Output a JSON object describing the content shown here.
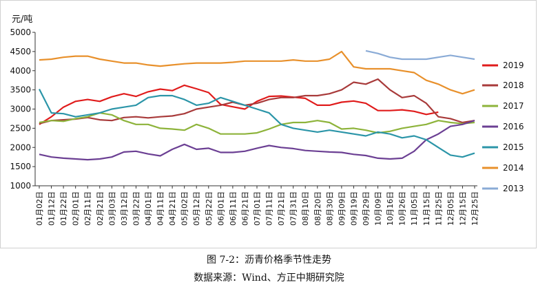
{
  "chart_data": {
    "type": "line",
    "ylabel": "元/吨",
    "ylim": [
      1000,
      5000
    ],
    "yticks": [
      1000,
      1500,
      2000,
      2500,
      3000,
      3500,
      4000,
      4500,
      5000
    ],
    "grid": false,
    "legend_position": "right",
    "x_tick_labels": [
      "01月02日",
      "01月12日",
      "01月22日",
      "02月01日",
      "02月11日",
      "02月21日",
      "03月03日",
      "03月12日",
      "03月22日",
      "04月01日",
      "04月11日",
      "04月21日",
      "05月02日",
      "05月12日",
      "05月22日",
      "06月01日",
      "06月11日",
      "06月21日",
      "07月01日",
      "07月11日",
      "07月21日",
      "07月31日",
      "08月10日",
      "08月20日",
      "08月30日",
      "09月09日",
      "09月19日",
      "09月29日",
      "10月09日",
      "10月16日",
      "10月26日",
      "11月05日",
      "11月15日",
      "11月25日",
      "12月05日",
      "12月15日",
      "12月25日"
    ],
    "x_index_range": [
      0,
      36
    ],
    "series": [
      {
        "name": "2019",
        "color": "#e01b1b",
        "x": [
          0,
          1,
          2,
          3,
          4,
          5,
          6,
          7,
          8,
          9,
          10,
          11,
          12,
          13,
          14,
          15,
          16,
          17,
          18,
          19,
          20,
          21,
          22,
          23,
          24,
          25,
          26,
          27,
          28,
          29,
          30,
          31,
          32,
          33
        ],
        "values": [
          2600,
          2800,
          3050,
          3200,
          3250,
          3200,
          3320,
          3400,
          3330,
          3450,
          3520,
          3480,
          3620,
          3530,
          3430,
          3120,
          3060,
          3000,
          3200,
          3330,
          3340,
          3310,
          3280,
          3100,
          3100,
          3180,
          3210,
          3150,
          2960,
          2960,
          2980,
          2940,
          2860,
          2920
        ]
      },
      {
        "name": "2018",
        "color": "#a83a3a",
        "x": [
          0,
          1,
          2,
          3,
          4,
          5,
          6,
          7,
          8,
          9,
          10,
          11,
          12,
          13,
          14,
          15,
          16,
          17,
          18,
          19,
          20,
          21,
          22,
          23,
          24,
          25,
          26,
          27,
          28,
          29,
          30,
          31,
          32,
          33,
          34,
          35,
          36
        ],
        "values": [
          2620,
          2700,
          2720,
          2740,
          2780,
          2720,
          2700,
          2780,
          2800,
          2770,
          2800,
          2820,
          2880,
          3000,
          3050,
          3100,
          3180,
          3100,
          3150,
          3250,
          3300,
          3300,
          3350,
          3350,
          3400,
          3500,
          3700,
          3650,
          3780,
          3500,
          3300,
          3350,
          3150,
          2800,
          2750,
          2650,
          2700
        ]
      },
      {
        "name": "2017",
        "color": "#8db33a",
        "x": [
          0,
          1,
          2,
          3,
          4,
          5,
          6,
          7,
          8,
          9,
          10,
          11,
          12,
          13,
          14,
          15,
          16,
          17,
          18,
          19,
          20,
          21,
          22,
          23,
          24,
          25,
          26,
          27,
          28,
          29,
          30,
          31,
          32,
          33,
          34,
          35,
          36
        ],
        "values": [
          2650,
          2700,
          2680,
          2750,
          2800,
          2900,
          2850,
          2700,
          2600,
          2600,
          2500,
          2480,
          2450,
          2600,
          2500,
          2350,
          2350,
          2350,
          2380,
          2480,
          2600,
          2650,
          2650,
          2700,
          2650,
          2480,
          2500,
          2450,
          2380,
          2420,
          2500,
          2550,
          2600,
          2700,
          2650,
          2620,
          2650
        ]
      },
      {
        "name": "2016",
        "color": "#6b3f93",
        "x": [
          0,
          1,
          2,
          3,
          4,
          5,
          6,
          7,
          8,
          9,
          10,
          11,
          12,
          13,
          14,
          15,
          16,
          17,
          18,
          19,
          20,
          21,
          22,
          23,
          24,
          25,
          26,
          27,
          28,
          29,
          30,
          31,
          32,
          33,
          34,
          35,
          36
        ],
        "values": [
          1820,
          1750,
          1720,
          1700,
          1680,
          1700,
          1750,
          1880,
          1900,
          1830,
          1780,
          1950,
          2080,
          1950,
          1980,
          1870,
          1870,
          1900,
          1980,
          2050,
          2000,
          1970,
          1920,
          1900,
          1880,
          1870,
          1820,
          1790,
          1720,
          1700,
          1720,
          1900,
          2200,
          2350,
          2550,
          2600,
          2700
        ]
      },
      {
        "name": "2015",
        "color": "#2b95a8",
        "x": [
          0,
          1,
          2,
          3,
          4,
          5,
          6,
          7,
          8,
          9,
          10,
          11,
          12,
          13,
          14,
          15,
          16,
          17,
          18,
          19,
          20,
          21,
          22,
          23,
          24,
          25,
          26,
          27,
          28,
          29,
          30,
          31,
          32,
          33,
          34,
          35,
          36
        ],
        "values": [
          3520,
          2900,
          2880,
          2800,
          2850,
          2900,
          3000,
          3050,
          3100,
          3300,
          3350,
          3350,
          3250,
          3100,
          3150,
          3300,
          3200,
          3100,
          3000,
          2900,
          2600,
          2500,
          2450,
          2400,
          2450,
          2400,
          2350,
          2300,
          2400,
          2350,
          2250,
          2300,
          2200,
          2000,
          1800,
          1750,
          1850
        ]
      },
      {
        "name": "2014",
        "color": "#e8902b",
        "x": [
          0,
          1,
          2,
          3,
          4,
          5,
          6,
          7,
          8,
          9,
          10,
          11,
          12,
          13,
          14,
          15,
          16,
          17,
          18,
          19,
          20,
          21,
          22,
          23,
          24,
          25,
          26,
          27,
          28,
          29,
          30,
          31,
          32,
          33,
          34,
          35,
          36
        ],
        "values": [
          4280,
          4300,
          4350,
          4380,
          4380,
          4300,
          4250,
          4200,
          4200,
          4150,
          4120,
          4150,
          4180,
          4200,
          4200,
          4200,
          4220,
          4250,
          4250,
          4250,
          4250,
          4280,
          4250,
          4250,
          4300,
          4500,
          4100,
          4050,
          4050,
          4050,
          4000,
          3950,
          3750,
          3650,
          3500,
          3400,
          3500
        ]
      },
      {
        "name": "2013",
        "color": "#8aabd6",
        "x": [
          27,
          28,
          29,
          30,
          31,
          32,
          33,
          34,
          35,
          36
        ],
        "values": [
          4520,
          4450,
          4350,
          4300,
          4300,
          4300,
          4350,
          4400,
          4350,
          4300
        ]
      }
    ]
  },
  "caption": {
    "line1": "图 7-2：沥青价格季节性走势",
    "line2": "数据来源：Wind、方正中期研究院"
  }
}
